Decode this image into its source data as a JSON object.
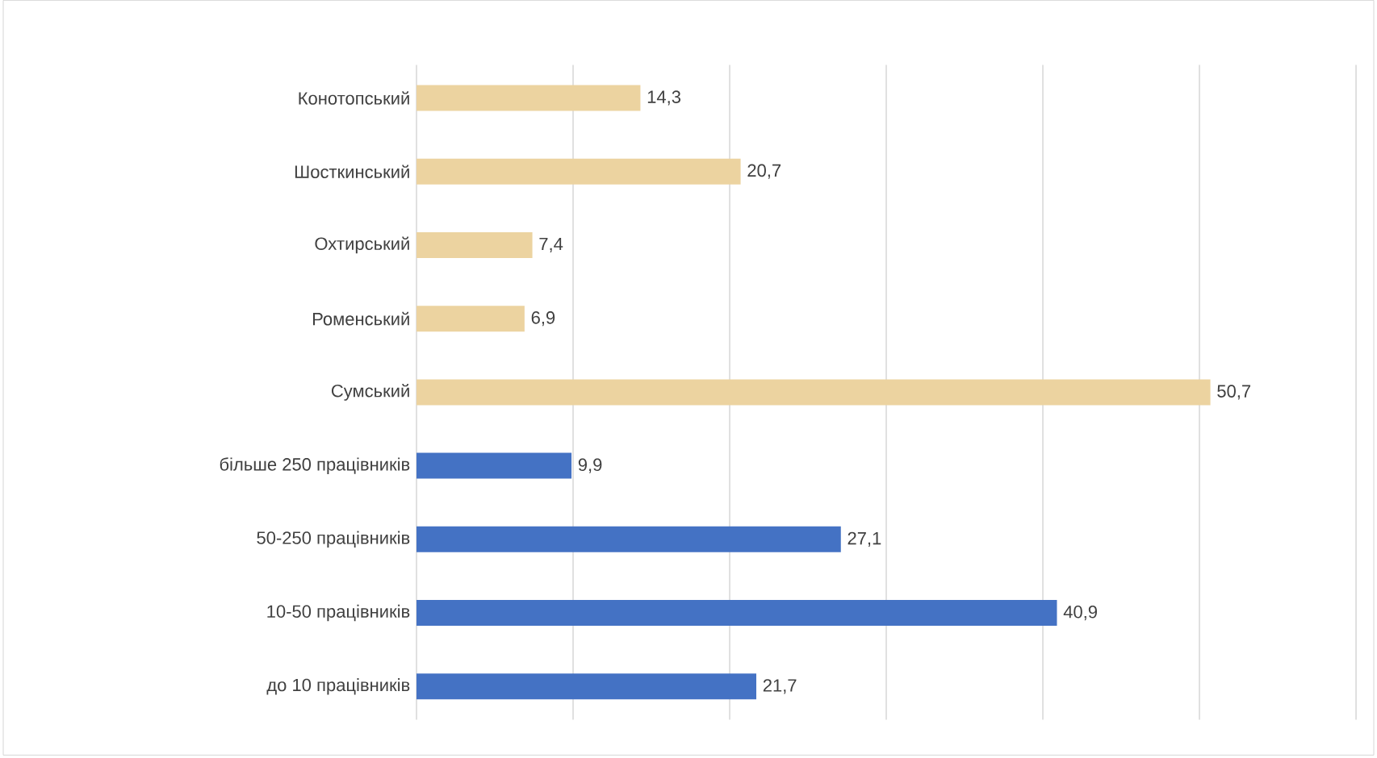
{
  "chart_data": {
    "type": "bar",
    "orientation": "horizontal",
    "categories": [
      "Конотопський",
      "Шосткинський",
      "Охтирський",
      "Роменський",
      "Сумський",
      "більше 250 працівників",
      "50-250 працівників",
      "10-50 працівників",
      "до 10 працівників"
    ],
    "values": [
      14.3,
      20.7,
      7.4,
      6.9,
      50.7,
      9.9,
      27.1,
      40.9,
      21.7
    ],
    "value_labels": [
      "14,3",
      "20,7",
      "7,4",
      "6,9",
      "50,7",
      "9,9",
      "27,1",
      "40,9",
      "21,7"
    ],
    "colors": [
      "#ecd3a0",
      "#ecd3a0",
      "#ecd3a0",
      "#ecd3a0",
      "#ecd3a0",
      "#4472c4",
      "#4472c4",
      "#4472c4",
      "#4472c4"
    ],
    "xlim": [
      0,
      60
    ],
    "xticks": [
      {
        "value": 0,
        "label": null
      },
      {
        "value": 10,
        "label": null
      },
      {
        "value": 20,
        "label": null
      },
      {
        "value": 30,
        "label": null
      },
      {
        "value": 40,
        "label": null
      },
      {
        "value": 50,
        "label": null
      },
      {
        "value": 60,
        "label": null
      }
    ],
    "grid": "x",
    "tick_labels": "y"
  }
}
